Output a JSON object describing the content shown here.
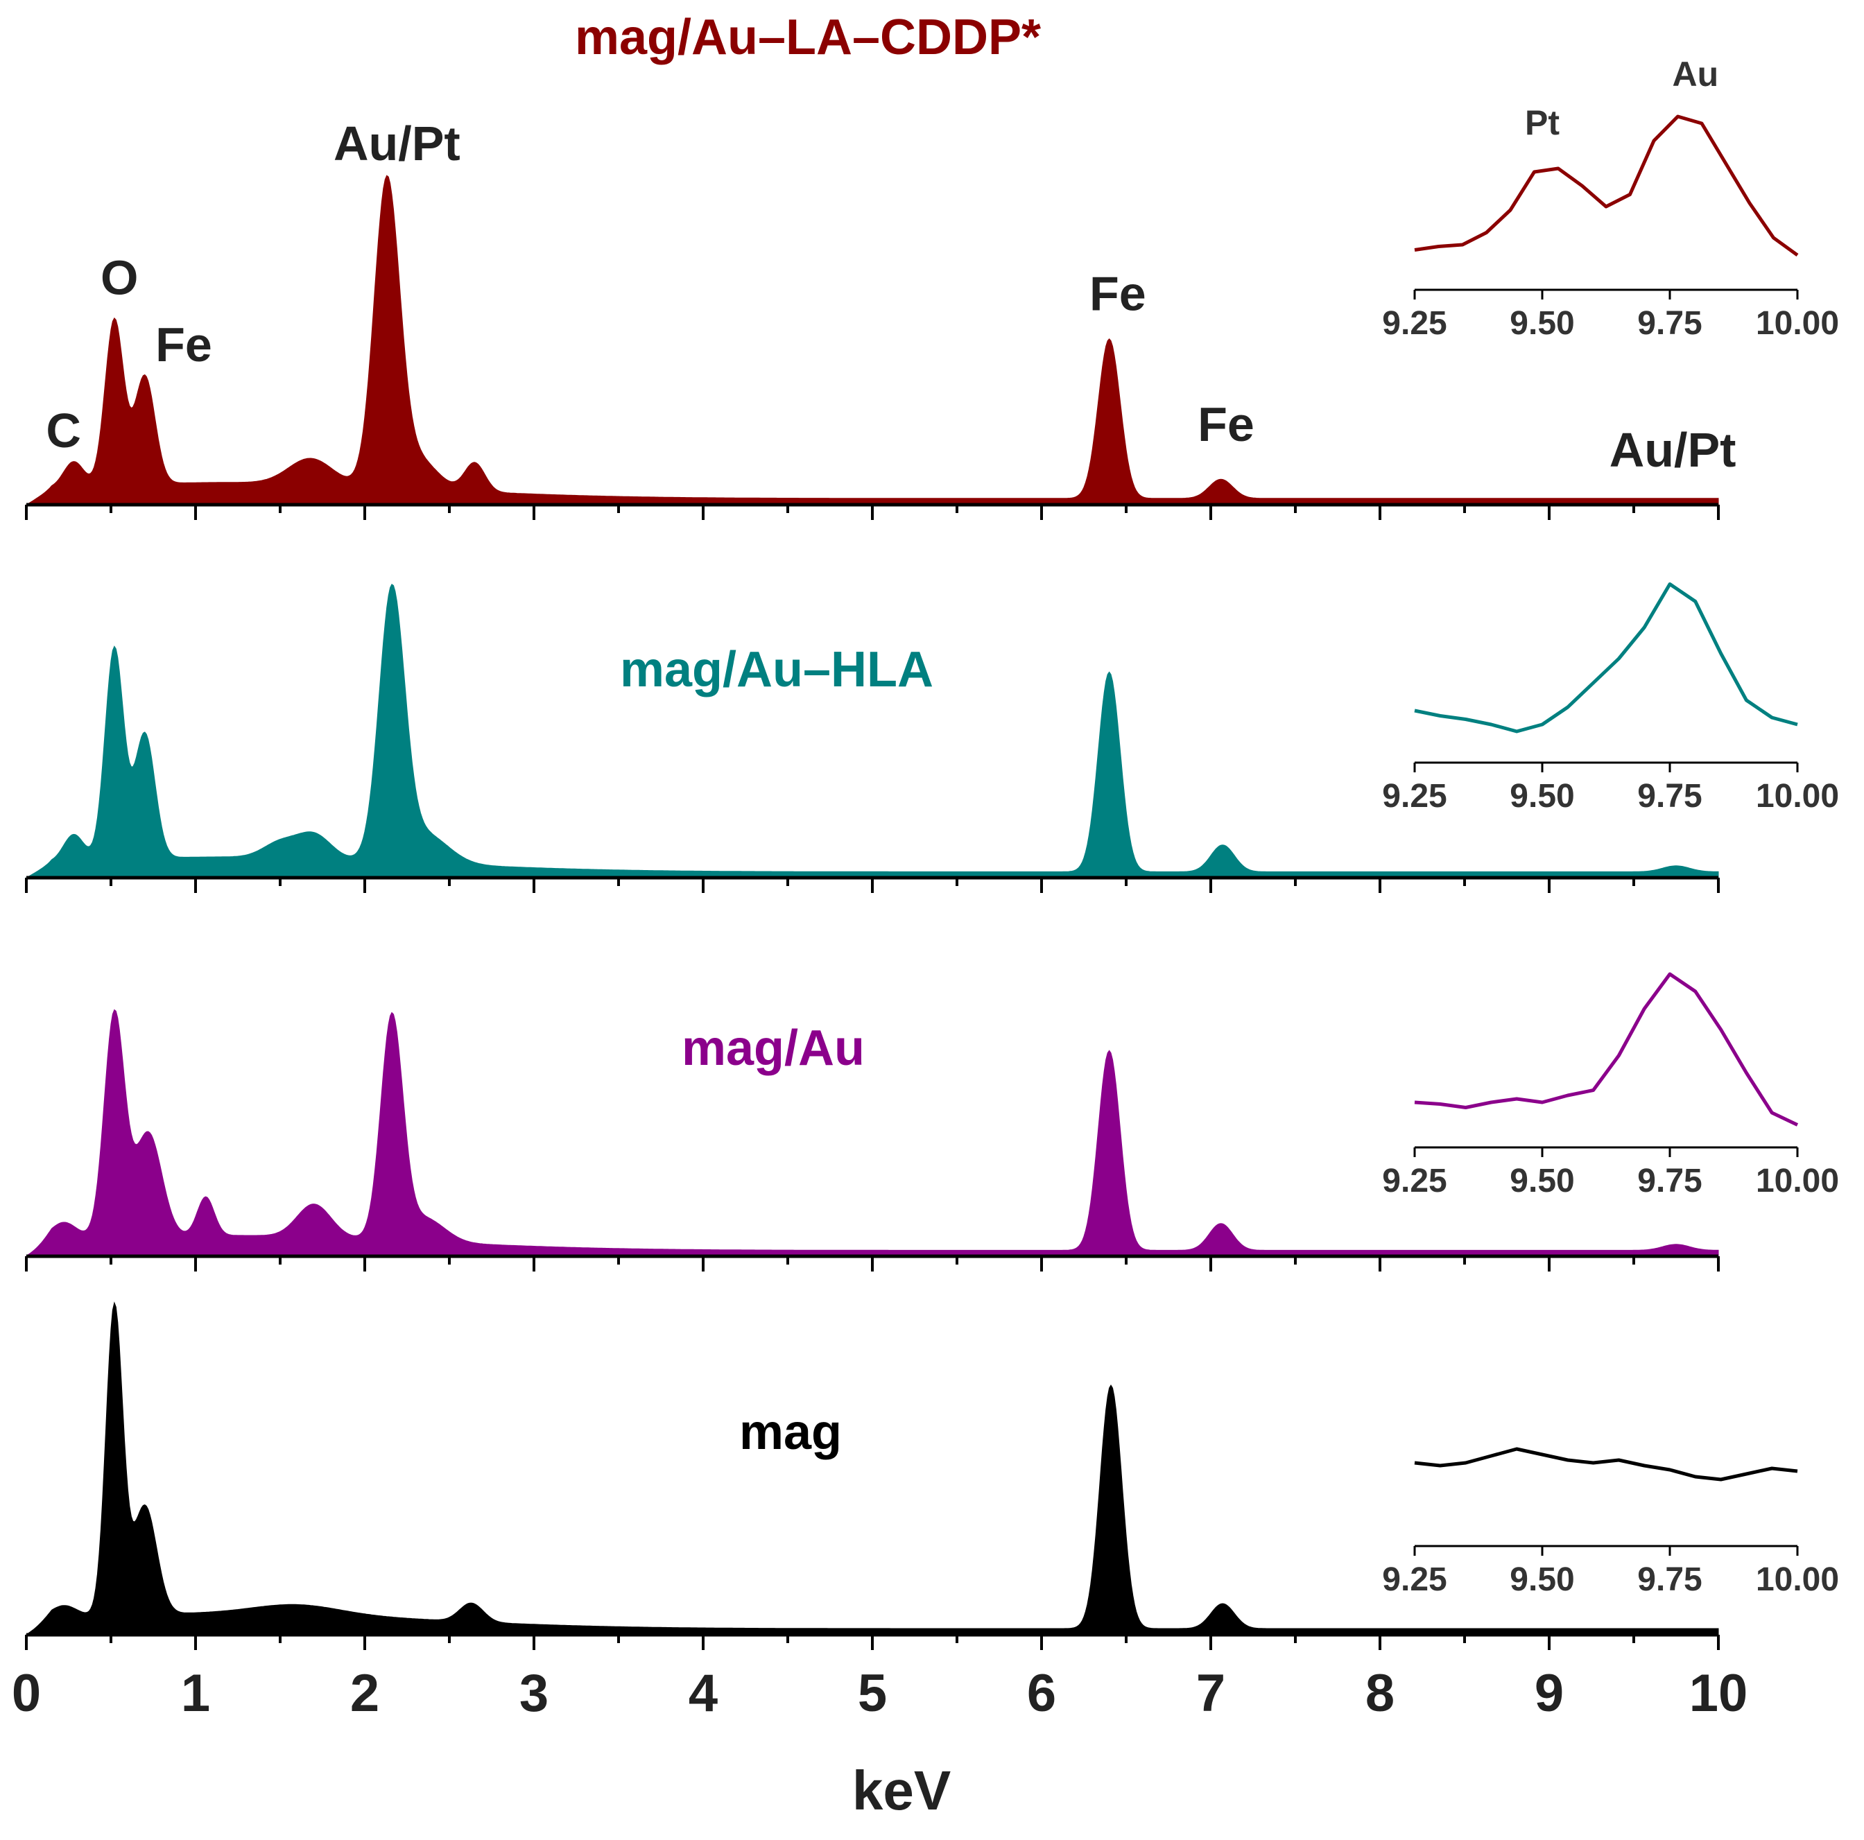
{
  "chart_data": {
    "type": "area",
    "title": "",
    "xlabel": "keV",
    "ylabel": "",
    "xlim": [
      0,
      10
    ],
    "ylim": [
      0,
      1
    ],
    "grid": false,
    "x_ticks": [
      0,
      1,
      2,
      3,
      4,
      5,
      6,
      7,
      8,
      9,
      10
    ],
    "x_tick_labels": [
      "0",
      "1",
      "2",
      "3",
      "4",
      "5",
      "6",
      "7",
      "8",
      "9",
      "10"
    ],
    "inset_xlim": [
      9.25,
      10.0
    ],
    "inset_tick_labels": [
      "9.25",
      "9.50",
      "9.75",
      "10.00"
    ],
    "series": [
      {
        "name": "mag/Au–LA–CDDP*",
        "color": "#8b0000",
        "baseline": 0.02,
        "peaks": [
          {
            "x": 0.28,
            "h": 0.08,
            "w": 0.06
          },
          {
            "x": 0.52,
            "h": 0.52,
            "w": 0.055
          },
          {
            "x": 0.7,
            "h": 0.34,
            "w": 0.06
          },
          {
            "x": 1.05,
            "h": 0.0,
            "w": 0.05
          },
          {
            "x": 1.68,
            "h": 0.08,
            "w": 0.13
          },
          {
            "x": 2.13,
            "h": 0.94,
            "w": 0.075
          },
          {
            "x": 2.3,
            "h": 0.1,
            "w": 0.12
          },
          {
            "x": 2.65,
            "h": 0.09,
            "w": 0.06
          },
          {
            "x": 6.4,
            "h": 0.5,
            "w": 0.065
          },
          {
            "x": 7.06,
            "h": 0.06,
            "w": 0.07
          }
        ],
        "inset_values": [
          0.15,
          0.17,
          0.18,
          0.25,
          0.38,
          0.6,
          0.62,
          0.52,
          0.4,
          0.47,
          0.78,
          0.92,
          0.88,
          0.65,
          0.42,
          0.22,
          0.12
        ],
        "annotations": [
          {
            "text": "C",
            "x": 0.22,
            "y": 0.18
          },
          {
            "text": "O",
            "x": 0.55,
            "y": 0.66
          },
          {
            "text": "Fe",
            "x": 0.93,
            "y": 0.45
          },
          {
            "text": "Au/Pt",
            "x": 2.19,
            "y": 1.08
          },
          {
            "text": "Fe",
            "x": 6.45,
            "y": 0.61
          },
          {
            "text": "Fe",
            "x": 7.09,
            "y": 0.2
          },
          {
            "text": "Au/Pt",
            "x": 9.73,
            "y": 0.12
          }
        ],
        "label_position": "top-center",
        "inset_annotations": [
          {
            "text": "Pt",
            "x": 9.5,
            "y": 0.72
          },
          {
            "text": "Au",
            "x": 9.8,
            "y": 1.0
          }
        ]
      },
      {
        "name": "mag/Au–HLA",
        "color": "#008080",
        "baseline": 0.02,
        "peaks": [
          {
            "x": 0.28,
            "h": 0.09,
            "w": 0.06
          },
          {
            "x": 0.52,
            "h": 0.71,
            "w": 0.055
          },
          {
            "x": 0.7,
            "h": 0.42,
            "w": 0.06
          },
          {
            "x": 1.5,
            "h": 0.05,
            "w": 0.1
          },
          {
            "x": 1.7,
            "h": 0.08,
            "w": 0.1
          },
          {
            "x": 2.16,
            "h": 0.89,
            "w": 0.075
          },
          {
            "x": 2.35,
            "h": 0.1,
            "w": 0.14
          },
          {
            "x": 6.4,
            "h": 0.67,
            "w": 0.065
          },
          {
            "x": 7.07,
            "h": 0.09,
            "w": 0.07
          },
          {
            "x": 9.75,
            "h": 0.02,
            "w": 0.08
          }
        ],
        "inset_values": [
          0.22,
          0.19,
          0.17,
          0.14,
          0.1,
          0.14,
          0.24,
          0.38,
          0.52,
          0.7,
          0.95,
          0.85,
          0.55,
          0.28,
          0.18,
          0.14
        ],
        "label_position": "center"
      },
      {
        "name": "mag/Au",
        "color": "#8b008b",
        "baseline": 0.02,
        "peaks": [
          {
            "x": 0.22,
            "h": 0.06,
            "w": 0.08
          },
          {
            "x": 0.52,
            "h": 0.75,
            "w": 0.06
          },
          {
            "x": 0.72,
            "h": 0.35,
            "w": 0.08
          },
          {
            "x": 1.06,
            "h": 0.13,
            "w": 0.05
          },
          {
            "x": 1.7,
            "h": 0.11,
            "w": 0.1
          },
          {
            "x": 2.16,
            "h": 0.74,
            "w": 0.065
          },
          {
            "x": 2.35,
            "h": 0.08,
            "w": 0.12
          },
          {
            "x": 6.4,
            "h": 0.67,
            "w": 0.065
          },
          {
            "x": 7.06,
            "h": 0.09,
            "w": 0.07
          },
          {
            "x": 9.75,
            "h": 0.02,
            "w": 0.08
          }
        ],
        "inset_values": [
          0.18,
          0.17,
          0.15,
          0.18,
          0.2,
          0.18,
          0.22,
          0.25,
          0.45,
          0.72,
          0.92,
          0.82,
          0.6,
          0.35,
          0.12,
          0.05
        ],
        "label_position": "center"
      },
      {
        "name": "mag",
        "color": "#000000",
        "baseline": 0.02,
        "peaks": [
          {
            "x": 0.22,
            "h": 0.04,
            "w": 0.08
          },
          {
            "x": 0.52,
            "h": 0.99,
            "w": 0.05
          },
          {
            "x": 0.7,
            "h": 0.35,
            "w": 0.07
          },
          {
            "x": 1.6,
            "h": 0.03,
            "w": 0.25
          },
          {
            "x": 2.63,
            "h": 0.06,
            "w": 0.07
          },
          {
            "x": 6.41,
            "h": 0.78,
            "w": 0.065
          },
          {
            "x": 7.07,
            "h": 0.08,
            "w": 0.07
          }
        ],
        "inset_values": [
          0.5,
          0.48,
          0.5,
          0.55,
          0.6,
          0.56,
          0.52,
          0.5,
          0.52,
          0.48,
          0.45,
          0.4,
          0.38,
          0.42,
          0.46,
          0.44
        ],
        "label_position": "center"
      }
    ]
  }
}
